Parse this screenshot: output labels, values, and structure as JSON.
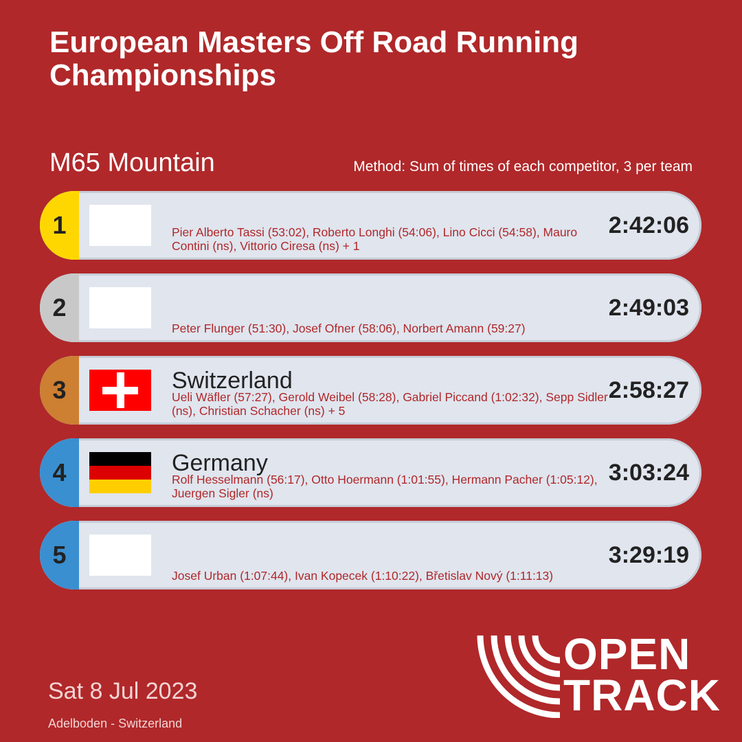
{
  "header": {
    "title_line1": "European Masters Off Road Running",
    "title_line2": "Championships",
    "event": "M65 Mountain",
    "method": "Method: Sum of times of each competitor, 3 per team"
  },
  "results": [
    {
      "rank": "1",
      "team": "",
      "flag": "blank",
      "athletes": "Pier Alberto Tassi (53:02), Roberto Longhi (54:06), Lino Cicci (54:58), Mauro Contini (ns), Vittorio Ciresa (ns) + 1",
      "time": "2:42:06"
    },
    {
      "rank": "2",
      "team": "",
      "flag": "blank",
      "athletes": "Peter Flunger (51:30), Josef Ofner (58:06), Norbert Amann (59:27)",
      "time": "2:49:03"
    },
    {
      "rank": "3",
      "team": "Switzerland",
      "flag": "switzerland-flag",
      "athletes": "Ueli Wäfler (57:27), Gerold Weibel (58:28), Gabriel Piccand (1:02:32), Sepp Sidler (ns), Christian Schacher (ns) + 5",
      "time": "2:58:27"
    },
    {
      "rank": "4",
      "team": "Germany",
      "flag": "germany-flag",
      "athletes": "Rolf Hesselmann (56:17), Otto Hoermann (1:01:55), Hermann Pacher (1:05:12), Juergen Sigler (ns)",
      "time": "3:03:24"
    },
    {
      "rank": "5",
      "team": "",
      "flag": "blank",
      "athletes": "Josef Urban (1:07:44), Ivan Kopecek (1:10:22), Břetislav Nový (1:11:13)",
      "time": "3:29:19"
    }
  ],
  "footer": {
    "date": "Sat 8 Jul 2023",
    "location": "Adelboden - Switzerland",
    "logo_line1": "OPEN",
    "logo_line2": "TRACK"
  },
  "colors": {
    "background": "#b0282a",
    "gold": "#ffd700",
    "silver": "#c8c8c8",
    "bronze": "#cd7f32",
    "other_rank": "#3a8fd0",
    "row_bg": "#e0e5ee"
  }
}
